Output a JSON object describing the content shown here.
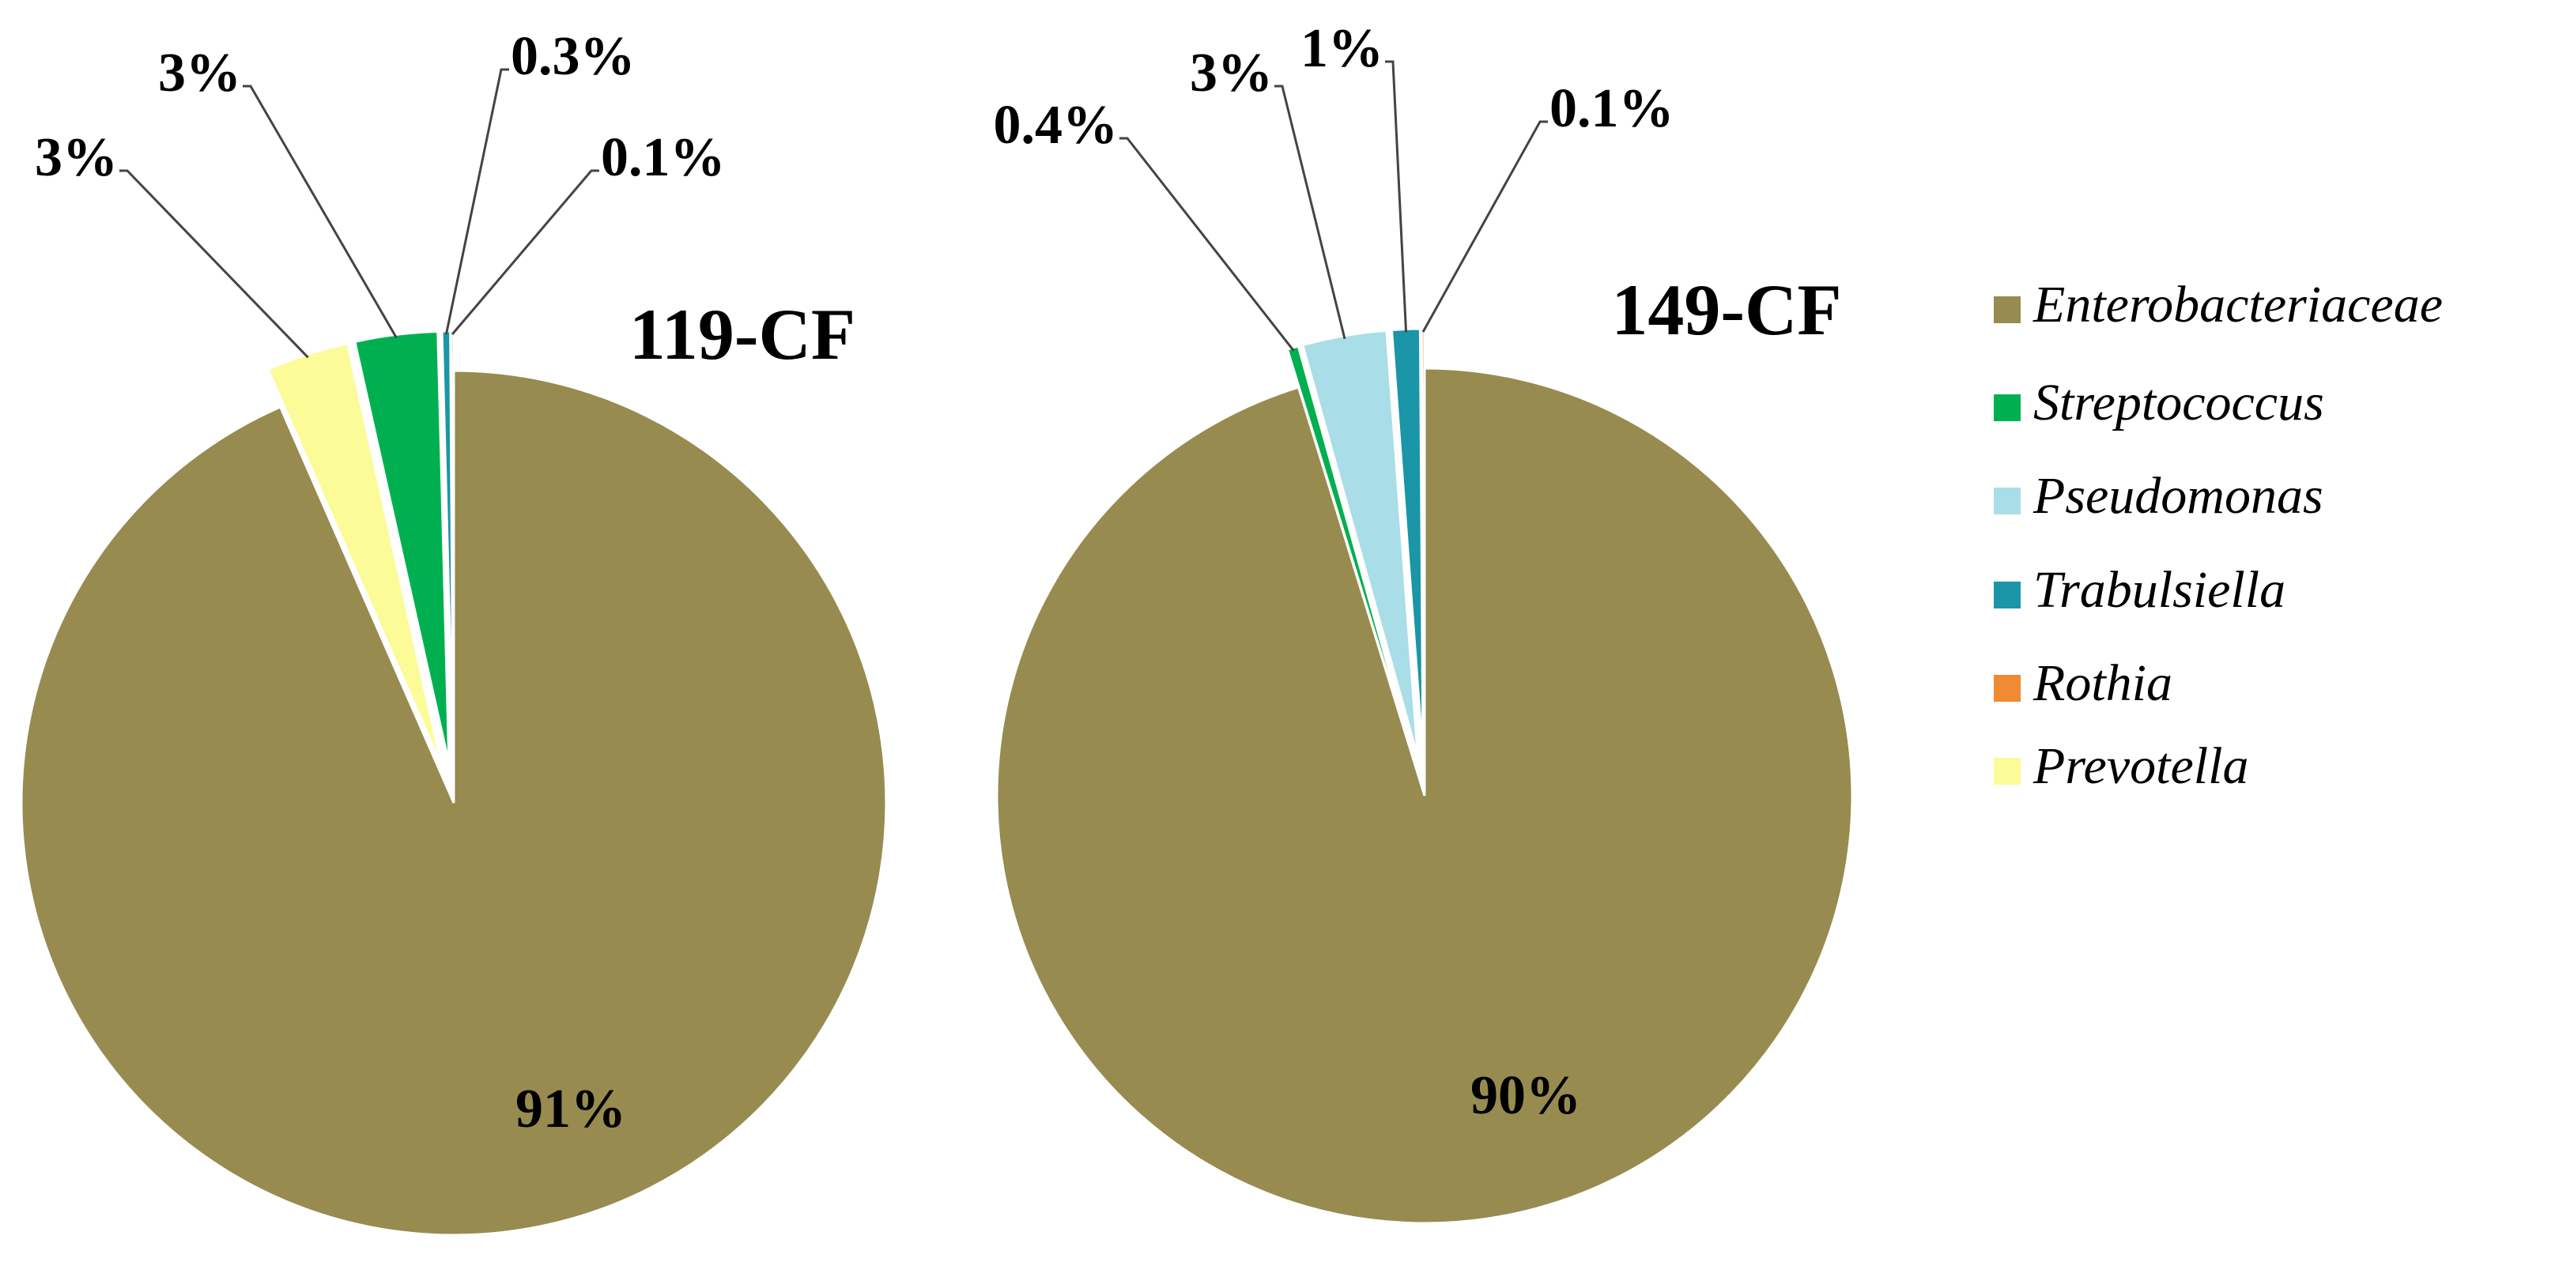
{
  "chart_data": [
    {
      "type": "pie",
      "title": "119-CF",
      "categories": [
        "Enterobacteriaceae",
        "Prevotella",
        "Streptococcus",
        "Trabulsiella",
        "Pseudomonas"
      ],
      "values": [
        91,
        3,
        3,
        0.3,
        0.1
      ],
      "value_labels": [
        "91%",
        "3%",
        "3%",
        "0.3%",
        "0.1%"
      ]
    },
    {
      "type": "pie",
      "title": "149-CF",
      "categories": [
        "Enterobacteriaceae",
        "Streptococcus",
        "Pseudomonas",
        "Trabulsiella",
        "Rothia"
      ],
      "values": [
        90,
        0.4,
        3,
        1,
        0.1
      ],
      "value_labels": [
        "90%",
        "0.4%",
        "3%",
        "1%",
        "0.1%"
      ]
    }
  ],
  "legend": {
    "items": [
      {
        "name": "Enterobacteriaceae",
        "color": "#978b4f"
      },
      {
        "name": "Streptococcus",
        "color": "#00b050"
      },
      {
        "name": "Pseudomonas",
        "color": "#a9dde8"
      },
      {
        "name": "Trabulsiella",
        "color": "#1b95a8"
      },
      {
        "name": "Rothia",
        "color": "#f08a33"
      },
      {
        "name": "Prevotella",
        "color": "#fbfb98"
      }
    ]
  }
}
